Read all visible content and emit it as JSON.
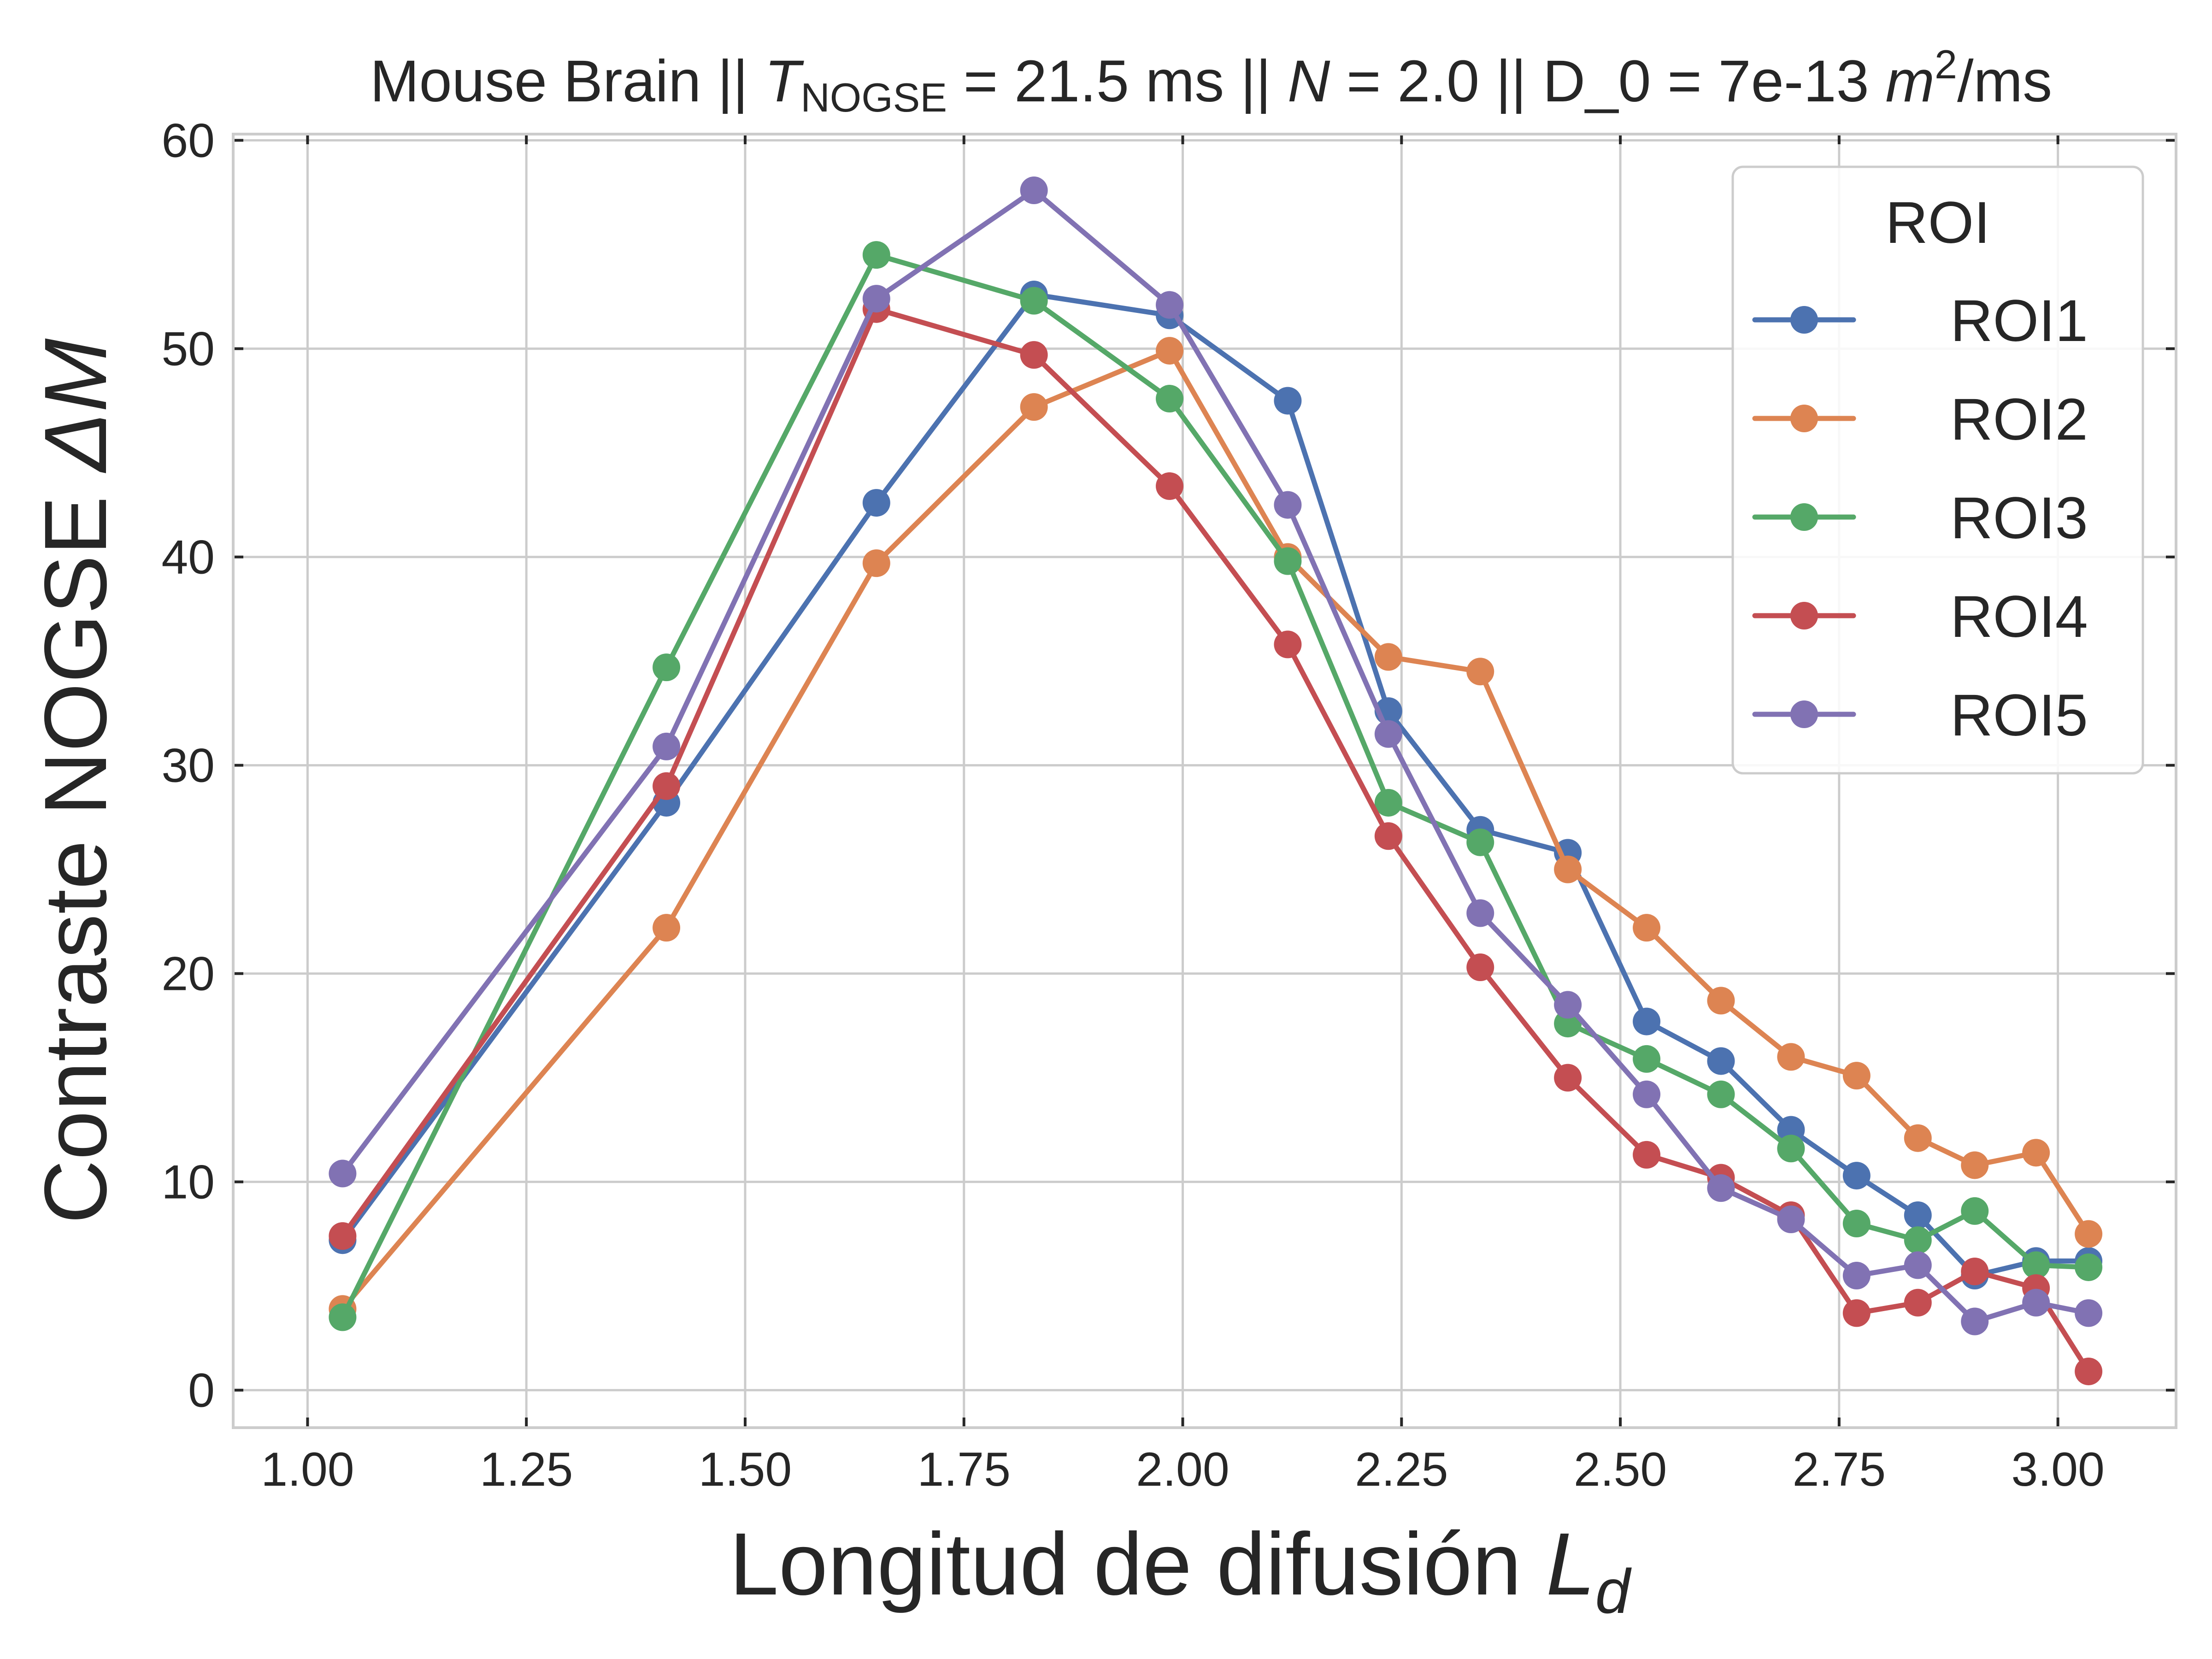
{
  "chart_data": {
    "type": "line",
    "title": {
      "prefix": "Mouse Brain || ",
      "t_symbol": "T",
      "t_subscript": "NOGSE",
      "t_value": " = 21.5 ms || ",
      "n_symbol": "N",
      "n_value": " = 2.0 || D_0 = 7e-13 ",
      "unit_m": "m",
      "unit_exp": "2",
      "unit_rest": "/ms"
    },
    "xlabel": {
      "text": "Longitud de difusión ",
      "symbol": "L",
      "subscript": "d"
    },
    "ylabel": {
      "text": "Contraste NOGSE ",
      "symbol": "ΔM"
    },
    "xlim": [
      0.915,
      3.135
    ],
    "ylim": [
      -1.8,
      60.3
    ],
    "x_ticks": [
      1.0,
      1.25,
      1.5,
      1.75,
      2.0,
      2.25,
      2.5,
      2.75,
      3.0
    ],
    "x_tick_labels": [
      "1.00",
      "1.25",
      "1.50",
      "1.75",
      "2.00",
      "2.25",
      "2.50",
      "2.75",
      "3.00"
    ],
    "y_ticks": [
      0,
      10,
      20,
      30,
      40,
      50,
      60
    ],
    "y_tick_labels": [
      "0",
      "10",
      "20",
      "30",
      "40",
      "50",
      "60"
    ],
    "grid": true,
    "legend": {
      "title": "ROI",
      "position": "top-right"
    },
    "x": [
      1.04,
      1.41,
      1.65,
      1.83,
      1.985,
      2.12,
      2.235,
      2.34,
      2.44,
      2.53,
      2.615,
      2.695,
      2.77,
      2.84,
      2.905,
      2.975,
      3.035
    ],
    "series": [
      {
        "name": "ROI1",
        "color": "#4c72b0",
        "values": [
          7.2,
          28.2,
          42.6,
          52.6,
          51.6,
          47.5,
          32.6,
          26.9,
          25.8,
          17.7,
          15.8,
          12.5,
          10.3,
          8.4,
          5.5,
          6.2,
          6.2
        ]
      },
      {
        "name": "ROI2",
        "color": "#dd8452",
        "values": [
          3.9,
          22.2,
          39.7,
          47.2,
          49.9,
          40.0,
          35.2,
          34.5,
          25.0,
          22.2,
          18.7,
          16.0,
          15.1,
          12.1,
          10.8,
          11.4,
          7.5
        ]
      },
      {
        "name": "ROI3",
        "color": "#55a868",
        "values": [
          3.5,
          34.7,
          54.5,
          52.3,
          47.6,
          39.8,
          28.2,
          26.3,
          17.6,
          15.9,
          14.2,
          11.6,
          8.0,
          7.2,
          8.6,
          6.0,
          5.9
        ]
      },
      {
        "name": "ROI4",
        "color": "#c44e52",
        "values": [
          7.4,
          29.0,
          51.9,
          49.7,
          43.4,
          35.8,
          26.6,
          20.3,
          15.0,
          11.3,
          10.2,
          8.4,
          3.7,
          4.2,
          5.7,
          4.9,
          0.9
        ]
      },
      {
        "name": "ROI5",
        "color": "#8172b3",
        "values": [
          10.4,
          30.9,
          52.4,
          57.6,
          52.1,
          42.5,
          31.5,
          22.9,
          18.5,
          14.2,
          9.7,
          8.2,
          5.5,
          6.0,
          3.3,
          4.2,
          3.7
        ]
      }
    ]
  }
}
